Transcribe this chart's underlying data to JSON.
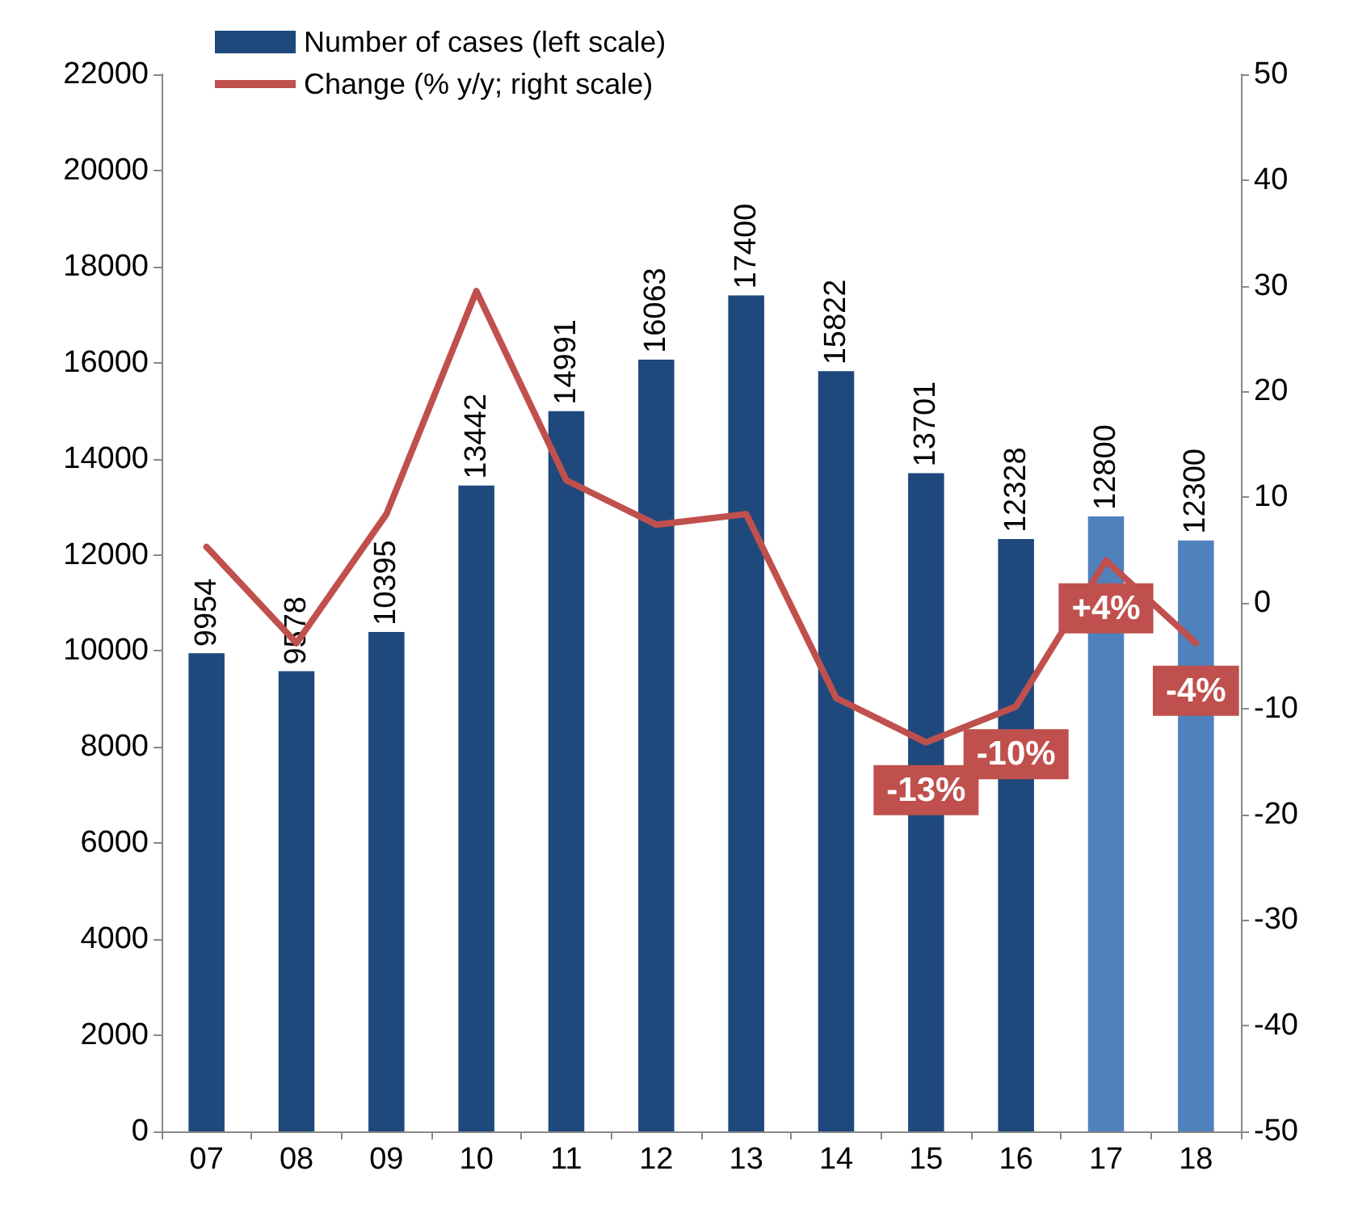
{
  "chart_data": {
    "type": "bar",
    "categories": [
      "07",
      "08",
      "09",
      "10",
      "11",
      "12",
      "13",
      "14",
      "15",
      "16",
      "17",
      "18"
    ],
    "series": [
      {
        "name": "Number of cases (left scale)",
        "colors": [
          "#1f497d",
          "#1f497d",
          "#1f497d",
          "#1f497d",
          "#1f497d",
          "#1f497d",
          "#1f497d",
          "#1f497d",
          "#1f497d",
          "#1f497d",
          "#4f81bd",
          "#4f81bd"
        ],
        "values": [
          9954,
          9578,
          10395,
          13442,
          14991,
          16063,
          17400,
          15822,
          13701,
          12328,
          12800,
          12300
        ],
        "value_labels": [
          "9954",
          "9578",
          "10395",
          "13442",
          "14991",
          "16063",
          "17400",
          "15822",
          "13701",
          "12328",
          "12800",
          "12300"
        ]
      },
      {
        "name": "Change (% y/y; right scale)",
        "type": "line",
        "axis": "y2",
        "color": "#c0504d",
        "values": [
          5.3,
          -3.8,
          8.4,
          29.5,
          11.6,
          7.4,
          8.4,
          -9,
          -13.2,
          -9.8,
          4,
          -3.8
        ],
        "value_labels": [
          null,
          null,
          null,
          null,
          null,
          null,
          null,
          null,
          "-13%",
          "-10%",
          "+4%",
          "-4%"
        ]
      }
    ],
    "ylim": [
      0,
      22000
    ],
    "yticks": [
      0,
      2000,
      4000,
      6000,
      8000,
      10000,
      12000,
      14000,
      16000,
      18000,
      20000,
      22000
    ],
    "y2lim": [
      -50,
      50
    ],
    "y2ticks": [
      -50,
      -40,
      -30,
      -20,
      -10,
      0,
      10,
      20,
      30,
      40,
      50
    ],
    "grid": false,
    "legend": "top left",
    "marker": "none",
    "line_style": "solid"
  }
}
